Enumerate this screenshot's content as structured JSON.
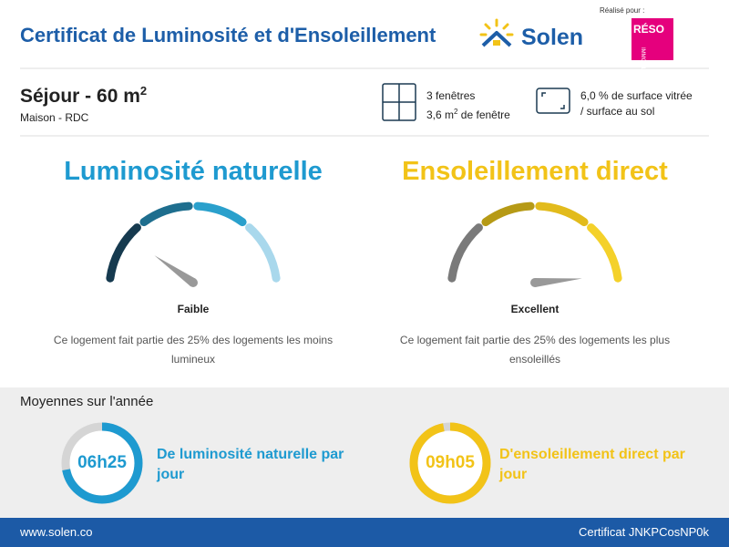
{
  "header": {
    "title": "Certificat de Luminosité et d'Ensoleillement",
    "brand": "Solen",
    "made_for": "Réalisé pour :",
    "partner": {
      "name": "RÉSO",
      "tagline": "IMMOBILIER"
    }
  },
  "room": {
    "title": "Séjour - 60 m",
    "title_sup": "2",
    "subtitle": "Maison - RDC"
  },
  "windows": {
    "count": "3 fenêtres",
    "area": "3,6 m",
    "area_sup": "2",
    "area_suffix": " de fenêtre"
  },
  "ratio": {
    "line1": "6,0 % de surface vitrée",
    "line2": "/ surface au sol"
  },
  "luminosity": {
    "title": "Luminosité naturelle",
    "level": "Faible",
    "description": "Ce logement fait partie des 25% des logements les moins lumineux"
  },
  "sunshine": {
    "title": "Ensoleillement direct",
    "level": "Excellent",
    "description": "Ce logement fait partie des 25% des logements les plus ensoleillés"
  },
  "averages": {
    "title": "Moyennes sur l'année",
    "items": [
      {
        "value": "06h25",
        "label": "De luminosité naturelle par jour"
      },
      {
        "value": "09h05",
        "label": "D'ensoleillement direct par jour"
      }
    ]
  },
  "footer": {
    "url": "www.solen.co",
    "certificate": "Certificat JNKPCosNP0k"
  }
}
